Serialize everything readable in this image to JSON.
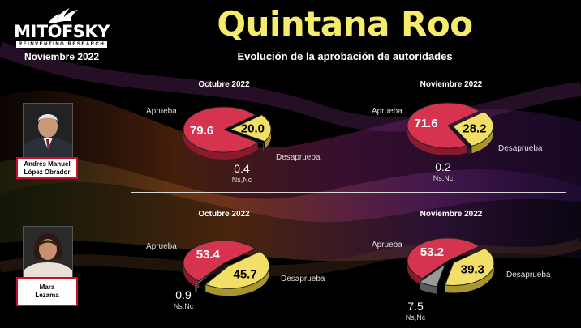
{
  "header": {
    "logo_name": "MITOFSKY",
    "logo_tagline": "REINVENTING RESEARCH",
    "logo_date": "Noviembre 2022",
    "title": "Quintana Roo",
    "subtitle": "Evolución de la aprobación de autoridades"
  },
  "people": [
    {
      "name_line1": "Andrés Manuel",
      "name_line2": "López Obrador"
    },
    {
      "name_line1": "Mara",
      "name_line2": "Lezama"
    }
  ],
  "labels": {
    "aprueba": "Aprueba",
    "desaprueba": "Desaprueba",
    "nsnc": "Ns,Nc"
  },
  "colors": {
    "aprueba": "#d6334e",
    "desaprueba": "#f2df68",
    "nsnc": "#9a9a9a",
    "title": "#f5ec6b"
  },
  "chart_data": [
    {
      "type": "pie",
      "title": "Octubre 2022",
      "person": "Andrés Manuel López Obrador",
      "categories": [
        "Aprueba",
        "Desaprueba",
        "Ns,Nc"
      ],
      "values": [
        79.6,
        20.0,
        0.4
      ],
      "display": [
        "79.6",
        "20.0",
        "0.4"
      ]
    },
    {
      "type": "pie",
      "title": "Noviembre 2022",
      "person": "Andrés Manuel López Obrador",
      "categories": [
        "Aprueba",
        "Desaprueba",
        "Ns,Nc"
      ],
      "values": [
        71.6,
        28.2,
        0.2
      ],
      "display": [
        "71.6",
        "28.2",
        "0.2"
      ]
    },
    {
      "type": "pie",
      "title": "Octubre 2022",
      "person": "Mara Lezama",
      "categories": [
        "Aprueba",
        "Desaprueba",
        "Ns,Nc"
      ],
      "values": [
        53.4,
        45.7,
        0.9
      ],
      "display": [
        "53.4",
        "45.7",
        "0.9"
      ]
    },
    {
      "type": "pie",
      "title": "Noviembre 2022",
      "person": "Mara Lezama",
      "categories": [
        "Aprueba",
        "Desaprueba",
        "Ns,Nc"
      ],
      "values": [
        53.2,
        39.3,
        7.5
      ],
      "display": [
        "53.2",
        "39.3",
        "7.5"
      ]
    }
  ]
}
